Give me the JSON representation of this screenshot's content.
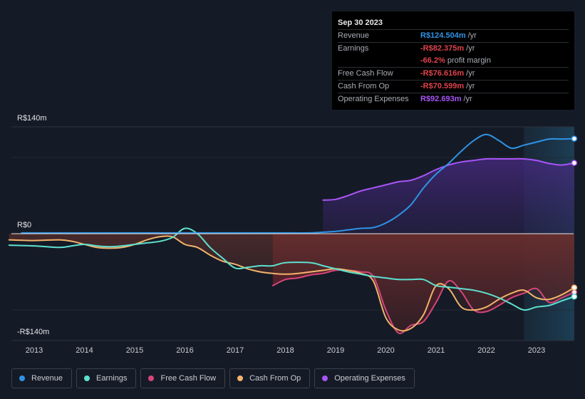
{
  "tooltip": {
    "date": "Sep 30 2023",
    "rows": [
      {
        "label": "Revenue",
        "value": "R$124.504m",
        "unit": "/yr",
        "color": "#2e93e5"
      },
      {
        "label": "Earnings",
        "value": "-R$82.375m",
        "unit": "/yr",
        "color": "#e0434c"
      },
      {
        "label": "",
        "value": "-66.2%",
        "unit": "profit margin",
        "color": "#e0434c"
      },
      {
        "label": "Free Cash Flow",
        "value": "-R$76.616m",
        "unit": "/yr",
        "color": "#e0434c"
      },
      {
        "label": "Cash From Op",
        "value": "-R$70.599m",
        "unit": "/yr",
        "color": "#e0434c"
      },
      {
        "label": "Operating Expenses",
        "value": "R$92.693m",
        "unit": "/yr",
        "color": "#a855f7"
      }
    ]
  },
  "legend": [
    {
      "label": "Revenue",
      "color": "#2e93e5"
    },
    {
      "label": "Earnings",
      "color": "#5ee0cf"
    },
    {
      "label": "Free Cash Flow",
      "color": "#d6457a"
    },
    {
      "label": "Cash From Op",
      "color": "#f2b36b"
    },
    {
      "label": "Operating Expenses",
      "color": "#a855f7"
    }
  ],
  "chart_data": {
    "type": "line",
    "title": "",
    "xlabel": "",
    "ylabel": "",
    "y_top_label": "R$140m",
    "y_zero_label": "R$0",
    "y_bottom_label": "-R$140m",
    "ylim": [
      -140,
      140
    ],
    "xlim": [
      2012.5,
      2023.75
    ],
    "x_ticks": [
      2013,
      2014,
      2015,
      2016,
      2017,
      2018,
      2019,
      2020,
      2021,
      2022,
      2023
    ],
    "x_tick_labels": [
      "2013",
      "2014",
      "2015",
      "2016",
      "2017",
      "2018",
      "2019",
      "2020",
      "2021",
      "2022",
      "2023"
    ],
    "forecast_start": 2022.75,
    "series": [
      {
        "name": "Revenue",
        "color": "#2e93e5",
        "fill": false,
        "x": [
          2012.75,
          2013.0,
          2014.0,
          2015.0,
          2016.0,
          2017.0,
          2018.0,
          2018.5,
          2018.75,
          2019.0,
          2019.25,
          2019.5,
          2019.75,
          2020.0,
          2020.25,
          2020.5,
          2020.75,
          2021.0,
          2021.25,
          2021.5,
          2021.75,
          2022.0,
          2022.25,
          2022.5,
          2022.75,
          2023.0,
          2023.25,
          2023.5,
          2023.75
        ],
        "values": [
          1,
          1,
          1,
          1,
          1,
          1,
          1,
          1,
          2,
          3,
          5,
          7,
          8,
          14,
          24,
          38,
          60,
          78,
          92,
          108,
          122,
          130,
          122,
          112,
          116,
          120,
          124,
          124,
          124.5
        ]
      },
      {
        "name": "Operating Expenses",
        "color": "#a855f7",
        "fill": true,
        "x": [
          2018.75,
          2019.0,
          2019.25,
          2019.5,
          2019.75,
          2020.0,
          2020.25,
          2020.5,
          2020.75,
          2021.0,
          2021.25,
          2021.5,
          2021.75,
          2022.0,
          2022.25,
          2022.5,
          2022.75,
          2023.0,
          2023.25,
          2023.5,
          2023.75
        ],
        "values": [
          44,
          45,
          50,
          56,
          60,
          64,
          68,
          70,
          76,
          84,
          90,
          94,
          96,
          98,
          98,
          98,
          98,
          96,
          92,
          90,
          92.7
        ]
      },
      {
        "name": "Earnings",
        "color": "#5ee0cf",
        "fill": false,
        "x": [
          2012.5,
          2013.0,
          2013.5,
          2013.75,
          2014.0,
          2014.25,
          2014.5,
          2014.75,
          2015.0,
          2015.25,
          2015.5,
          2015.75,
          2016.0,
          2016.25,
          2016.5,
          2016.75,
          2017.0,
          2017.25,
          2017.5,
          2017.75,
          2018.0,
          2018.5,
          2018.75,
          2019.0,
          2019.25,
          2019.5,
          2019.75,
          2020.0,
          2020.25,
          2020.5,
          2020.75,
          2021.0,
          2021.25,
          2021.5,
          2021.75,
          2022.0,
          2022.25,
          2022.5,
          2022.75,
          2023.0,
          2023.25,
          2023.5,
          2023.75
        ],
        "values": [
          -15,
          -16,
          -18,
          -16,
          -14,
          -16,
          -17,
          -16,
          -14,
          -12,
          -10,
          -5,
          7,
          0,
          -18,
          -32,
          -45,
          -44,
          -42,
          -42,
          -38,
          -38,
          -42,
          -46,
          -50,
          -53,
          -56,
          -58,
          -60,
          -60,
          -60,
          -68,
          -70,
          -72,
          -74,
          -78,
          -84,
          -92,
          -100,
          -96,
          -94,
          -88,
          -82.4
        ]
      },
      {
        "name": "Free Cash Flow",
        "color": "#d6457a",
        "fill": true,
        "x": [
          2017.75,
          2018.0,
          2018.25,
          2018.5,
          2018.75,
          2019.0,
          2019.25,
          2019.5,
          2019.75,
          2020.0,
          2020.25,
          2020.5,
          2020.75,
          2021.0,
          2021.25,
          2021.5,
          2021.75,
          2022.0,
          2022.25,
          2022.5,
          2022.75,
          2023.0,
          2023.25,
          2023.5,
          2023.75
        ],
        "values": [
          -68,
          -60,
          -58,
          -54,
          -52,
          -48,
          -48,
          -50,
          -56,
          -100,
          -130,
          -120,
          -115,
          -90,
          -62,
          -76,
          -100,
          -102,
          -94,
          -84,
          -78,
          -72,
          -90,
          -84,
          -76.6
        ]
      },
      {
        "name": "Cash From Op",
        "color": "#f2b36b",
        "fill": true,
        "x": [
          2012.5,
          2013.0,
          2013.5,
          2013.75,
          2014.0,
          2014.25,
          2014.5,
          2014.75,
          2015.0,
          2015.25,
          2015.5,
          2015.75,
          2016.0,
          2016.25,
          2016.5,
          2016.75,
          2017.0,
          2017.25,
          2017.5,
          2017.75,
          2018.0,
          2018.25,
          2018.5,
          2018.75,
          2019.0,
          2019.25,
          2019.5,
          2019.75,
          2020.0,
          2020.25,
          2020.5,
          2020.75,
          2021.0,
          2021.25,
          2021.5,
          2021.75,
          2022.0,
          2022.25,
          2022.5,
          2022.75,
          2023.0,
          2023.25,
          2023.5,
          2023.75
        ],
        "values": [
          -8,
          -9,
          -8,
          -10,
          -14,
          -18,
          -19,
          -18,
          -14,
          -8,
          -4,
          -4,
          -14,
          -18,
          -28,
          -36,
          -40,
          -46,
          -50,
          -52,
          -53,
          -52,
          -50,
          -48,
          -46,
          -48,
          -52,
          -62,
          -110,
          -126,
          -124,
          -106,
          -68,
          -72,
          -96,
          -100,
          -96,
          -86,
          -78,
          -74,
          -84,
          -86,
          -80,
          -70.6
        ]
      }
    ]
  }
}
